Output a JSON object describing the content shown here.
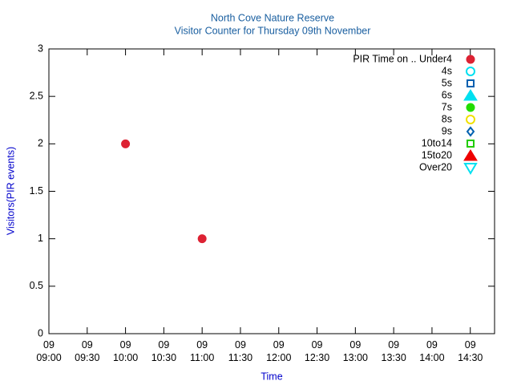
{
  "chart_data": {
    "type": "scatter",
    "title": "North Cove Nature Reserve",
    "subtitle": "Visitor Counter for Thursday 09th November",
    "x_label": "Time",
    "y_label": "Visitors(PIR events)",
    "x": [
      "09 10:00",
      "09 11:00"
    ],
    "series": [
      {
        "name": "PIR Time on .. Under4",
        "color": "#dd2233",
        "marker": "circle",
        "filled": true,
        "values": [
          2,
          1
        ]
      },
      {
        "name": "4s",
        "color": "#00e0f0",
        "marker": "circle",
        "filled": false,
        "values": [
          null,
          null
        ]
      },
      {
        "name": "5s",
        "color": "#0060b0",
        "marker": "square",
        "filled": false,
        "values": [
          null,
          null
        ]
      },
      {
        "name": "6s",
        "color": "#00e0f0",
        "marker": "triangle",
        "filled": true,
        "values": [
          null,
          null
        ]
      },
      {
        "name": "7s",
        "color": "#22dd00",
        "marker": "circle",
        "filled": true,
        "values": [
          null,
          null
        ]
      },
      {
        "name": "8s",
        "color": "#f0e000",
        "marker": "circle",
        "filled": false,
        "values": [
          null,
          null
        ]
      },
      {
        "name": "9s",
        "color": "#0060b0",
        "marker": "diamond",
        "filled": false,
        "values": [
          null,
          null
        ]
      },
      {
        "name": "10to14",
        "color": "#22cc00",
        "marker": "square",
        "filled": false,
        "values": [
          null,
          null
        ]
      },
      {
        "name": "15to20",
        "color": "#ee0000",
        "marker": "triangle",
        "filled": true,
        "values": [
          null,
          null
        ]
      },
      {
        "name": "Over20",
        "color": "#00e0f0",
        "marker": "triangle-down",
        "filled": false,
        "values": [
          null,
          null
        ]
      }
    ],
    "xlim": [
      "09 09:00",
      "09 14:49"
    ],
    "xticks": [
      "09 09:00",
      "09 09:30",
      "09 10:00",
      "09 10:30",
      "09 11:00",
      "09 11:30",
      "09 12:00",
      "09 12:30",
      "09 13:00",
      "09 13:30",
      "09 14:00",
      "09 14:30"
    ],
    "ylim": [
      0,
      3
    ],
    "yticks": [
      0,
      0.5,
      1,
      1.5,
      2,
      2.5,
      3
    ],
    "grid": false,
    "legend": "top-right"
  }
}
